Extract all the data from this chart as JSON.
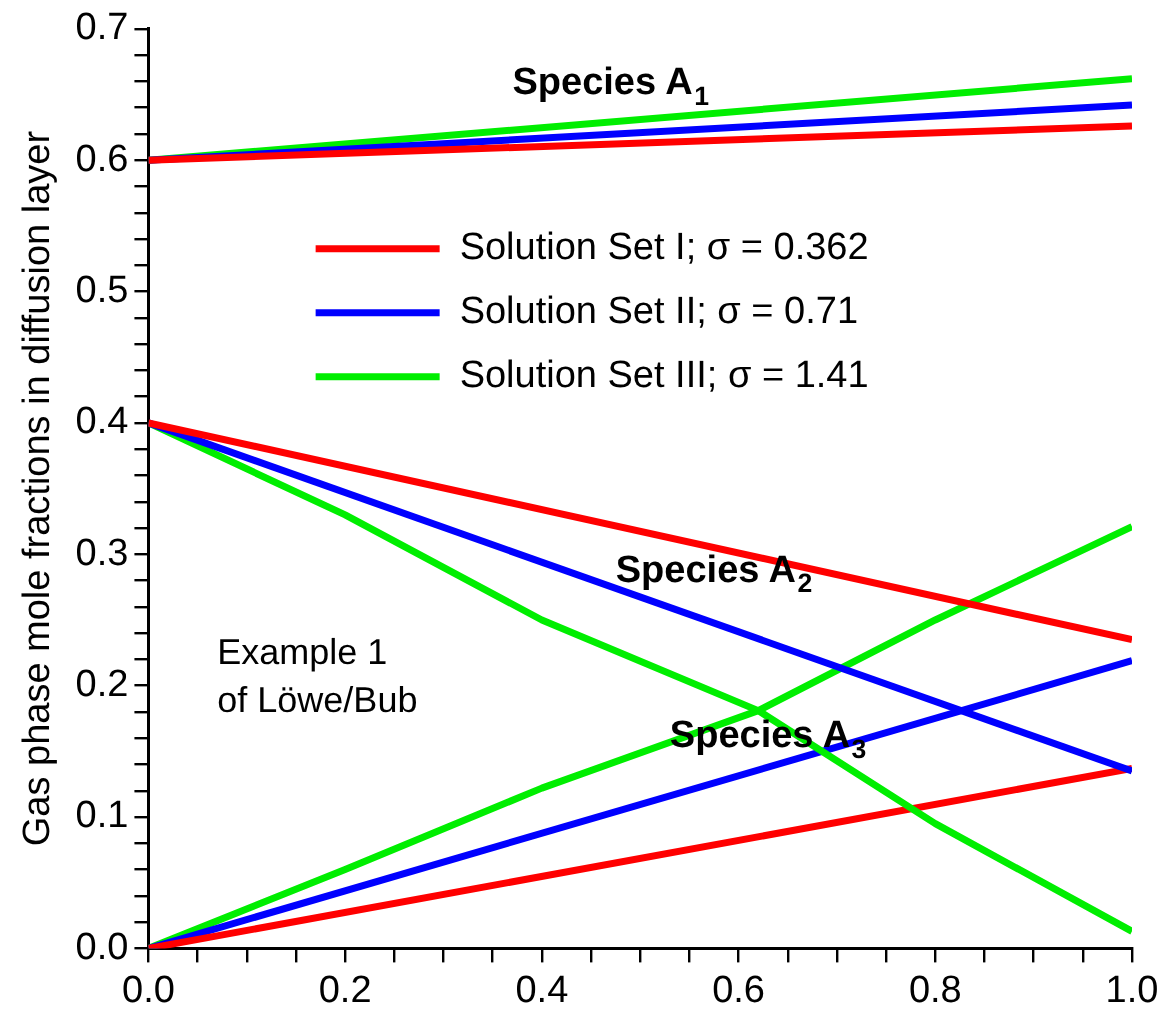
{
  "chart_data": {
    "type": "line",
    "ylabel": "Gas phase mole fractions in diffusion layer",
    "xlim": [
      0,
      1
    ],
    "ylim": [
      0,
      0.7
    ],
    "xticks": [
      {
        "value": 0,
        "label": "0.0"
      },
      {
        "value": 0.05,
        "label": null
      },
      {
        "value": 0.1,
        "label": null
      },
      {
        "value": 0.15,
        "label": null
      },
      {
        "value": 0.2,
        "label": "0.2"
      },
      {
        "value": 0.25,
        "label": null
      },
      {
        "value": 0.3,
        "label": null
      },
      {
        "value": 0.35,
        "label": null
      },
      {
        "value": 0.4,
        "label": "0.4"
      },
      {
        "value": 0.45,
        "label": null
      },
      {
        "value": 0.5,
        "label": null
      },
      {
        "value": 0.55,
        "label": null
      },
      {
        "value": 0.6,
        "label": "0.6"
      },
      {
        "value": 0.65,
        "label": null
      },
      {
        "value": 0.7,
        "label": null
      },
      {
        "value": 0.75,
        "label": null
      },
      {
        "value": 0.8,
        "label": "0.8"
      },
      {
        "value": 0.85,
        "label": null
      },
      {
        "value": 0.9,
        "label": null
      },
      {
        "value": 0.95,
        "label": null
      },
      {
        "value": 1,
        "label": "1.0"
      }
    ],
    "yticks": [
      {
        "value": 0,
        "label": "0.0"
      },
      {
        "value": 0.02,
        "label": null
      },
      {
        "value": 0.04,
        "label": null
      },
      {
        "value": 0.06,
        "label": null
      },
      {
        "value": 0.08,
        "label": null
      },
      {
        "value": 0.1,
        "label": "0.1"
      },
      {
        "value": 0.12,
        "label": null
      },
      {
        "value": 0.14,
        "label": null
      },
      {
        "value": 0.16,
        "label": null
      },
      {
        "value": 0.18,
        "label": null
      },
      {
        "value": 0.2,
        "label": "0.2"
      },
      {
        "value": 0.22,
        "label": null
      },
      {
        "value": 0.24,
        "label": null
      },
      {
        "value": 0.26,
        "label": null
      },
      {
        "value": 0.28,
        "label": null
      },
      {
        "value": 0.3,
        "label": "0.3"
      },
      {
        "value": 0.32,
        "label": null
      },
      {
        "value": 0.34,
        "label": null
      },
      {
        "value": 0.36,
        "label": null
      },
      {
        "value": 0.38,
        "label": null
      },
      {
        "value": 0.4,
        "label": "0.4"
      },
      {
        "value": 0.42,
        "label": null
      },
      {
        "value": 0.44,
        "label": null
      },
      {
        "value": 0.46,
        "label": null
      },
      {
        "value": 0.48,
        "label": null
      },
      {
        "value": 0.5,
        "label": "0.5"
      },
      {
        "value": 0.52,
        "label": null
      },
      {
        "value": 0.54,
        "label": null
      },
      {
        "value": 0.56,
        "label": null
      },
      {
        "value": 0.58,
        "label": null
      },
      {
        "value": 0.6,
        "label": "0.6"
      },
      {
        "value": 0.62,
        "label": null
      },
      {
        "value": 0.64,
        "label": null
      },
      {
        "value": 0.66,
        "label": null
      },
      {
        "value": 0.68,
        "label": null
      },
      {
        "value": 0.7,
        "label": "0.7"
      }
    ],
    "grid": false,
    "legend": "top right",
    "marker": "none",
    "line_style": "solid",
    "series": [
      {
        "name": "Solution Set I; σ = 0.362",
        "color": "#ff0000",
        "x": [
          0,
          1
        ],
        "values": [
          0.6,
          0.626
        ]
      },
      {
        "name": "Solution Set II; σ = 0.71",
        "color": "#0000ff",
        "x": [
          0,
          1
        ],
        "values": [
          0.6,
          0.642
        ]
      },
      {
        "name": "Solution Set III; σ = 1.41",
        "color": "#00ee00",
        "x": [
          0,
          1
        ],
        "values": [
          0.6,
          0.662
        ]
      },
      {
        "color": "#ff0000",
        "x": [
          0,
          1
        ],
        "values": [
          0.4,
          0.235
        ]
      },
      {
        "color": "#0000ff",
        "x": [
          0,
          1
        ],
        "values": [
          0.4,
          0.135
        ]
      },
      {
        "color": "#00ee00",
        "x": [
          0,
          0.2,
          0.4,
          0.62,
          0.8,
          1
        ],
        "values": [
          0.4,
          0.33,
          0.25,
          0.181,
          0.095,
          0.013
        ]
      },
      {
        "color": "#ff0000",
        "x": [
          0,
          1
        ],
        "values": [
          0,
          0.137
        ]
      },
      {
        "color": "#0000ff",
        "x": [
          0,
          1
        ],
        "values": [
          0,
          0.219
        ]
      },
      {
        "color": "#00ee00",
        "x": [
          0,
          0.2,
          0.4,
          0.62,
          0.8,
          1
        ],
        "values": [
          0,
          0.06,
          0.122,
          0.181,
          0.25,
          0.321
        ]
      }
    ],
    "annotations": [
      "Species A$_{1}$",
      "Species A$_{2}$",
      "Species A$_{3}$",
      "Example 1\nof Löwe/Bub"
    ]
  }
}
